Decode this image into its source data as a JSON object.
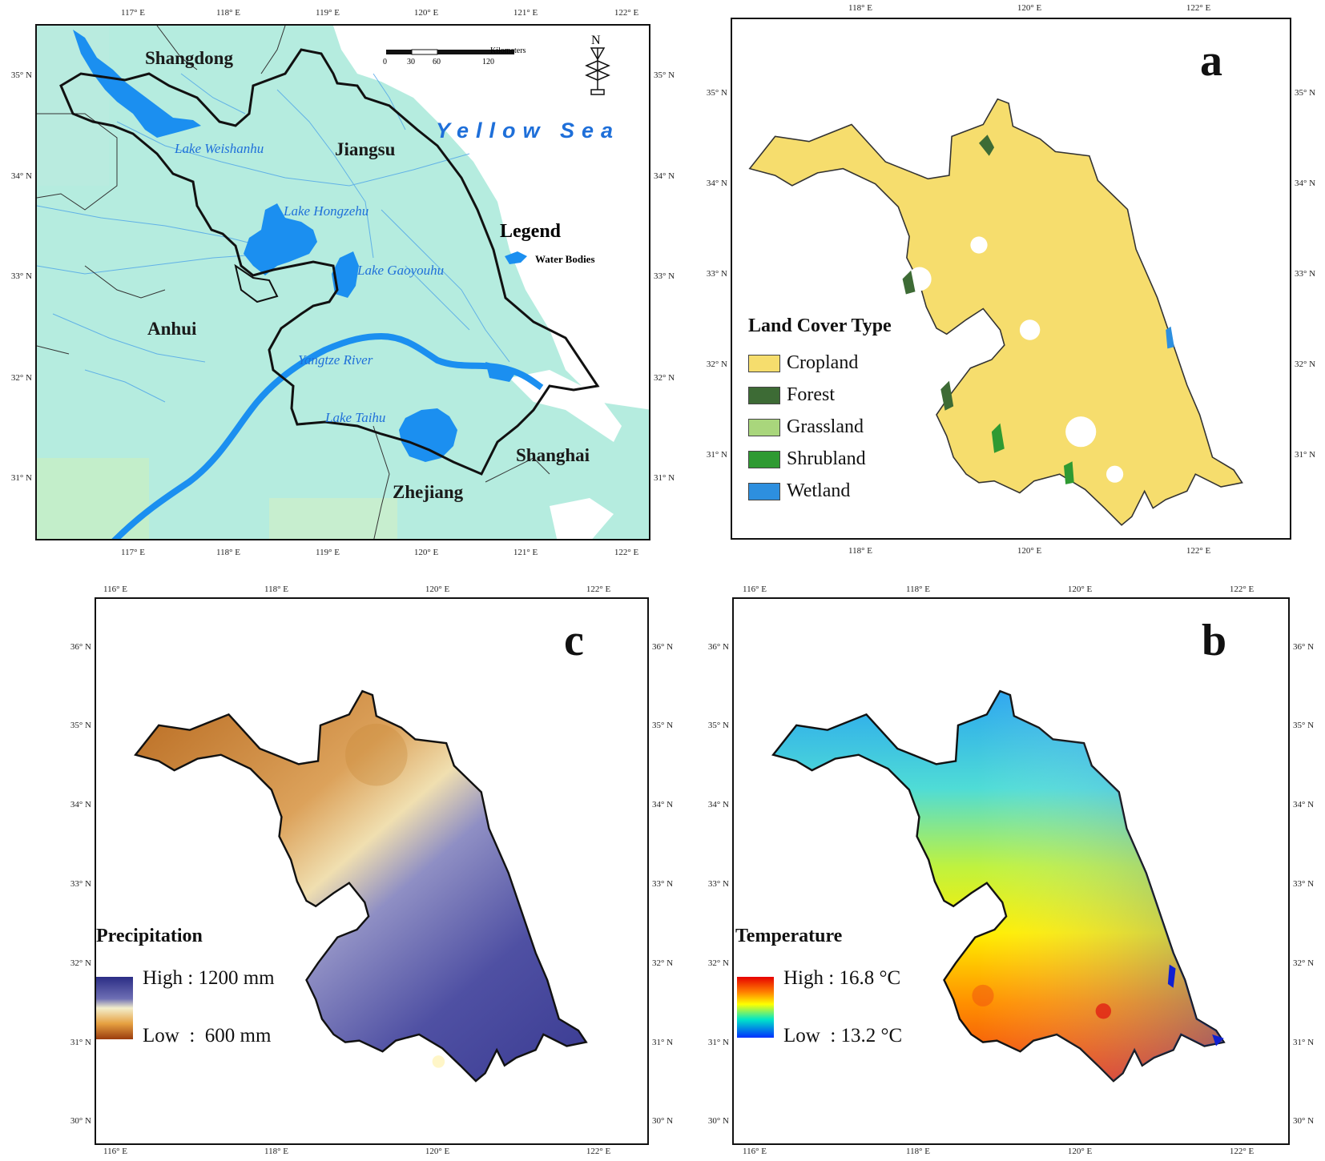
{
  "panels": {
    "overview": {
      "lon_labels": [
        "117° E",
        "118° E",
        "119° E",
        "120° E",
        "121° E",
        "122° E"
      ],
      "lat_labels": [
        "35° N",
        "34° N",
        "33° N",
        "32° N",
        "31° N"
      ],
      "regions": {
        "shangdong": "Shangdong",
        "jiangsu": "Jiangsu",
        "anhui": "Anhui",
        "shanghai": "Shanghai",
        "zhejiang": "Zhejiang"
      },
      "water_labels": {
        "weishanhu": "Lake Weishanhu",
        "hongzehu": "Lake Hongzehu",
        "gaoyouhu": "Lake Gaoyouhu",
        "yangtze": "Yangtze River",
        "taihu": "Lake Taihu"
      },
      "sea_label": "Yellow Sea",
      "legend_title": "Legend",
      "legend_item": "Water Bodies",
      "north_label": "N",
      "scalebar": {
        "unit": "Kilometers",
        "ticks": [
          "0",
          "30",
          "60",
          "120"
        ]
      },
      "colors": {
        "land": "#b5ecdf",
        "water": "#1b8ff0",
        "boundary": "#111111"
      }
    },
    "a": {
      "letter": "a",
      "lon_labels": [
        "118° E",
        "120° E",
        "122° E"
      ],
      "lat_labels": [
        "35° N",
        "34° N",
        "33° N",
        "32° N",
        "31° N"
      ],
      "legend_title": "Land Cover Type",
      "legend": [
        {
          "label": "Cropland",
          "color": "#f6dd6d"
        },
        {
          "label": "Forest",
          "color": "#3d6b35"
        },
        {
          "label": "Grassland",
          "color": "#a9d67c"
        },
        {
          "label": "Shrubland",
          "color": "#2f9a32"
        },
        {
          "label": "Wetland",
          "color": "#2d8fdf"
        }
      ]
    },
    "c": {
      "letter": "c",
      "lon_labels": [
        "116° E",
        "118° E",
        "120° E",
        "122° E"
      ],
      "lat_labels": [
        "36° N",
        "35° N",
        "34° N",
        "33° N",
        "32° N",
        "31° N",
        "30° N"
      ],
      "legend_title": "Precipitation",
      "high_label": "High : 1200 mm",
      "low_label": "Low  :  600 mm",
      "ramp": [
        "#2b2d85",
        "#6e6fb4",
        "#f3eecb",
        "#e6a040",
        "#9a3c0e"
      ]
    },
    "b": {
      "letter": "b",
      "lon_labels": [
        "116° E",
        "118° E",
        "120° E",
        "122° E"
      ],
      "lat_labels": [
        "36° N",
        "35° N",
        "34° N",
        "33° N",
        "32° N",
        "31° N",
        "30° N"
      ],
      "legend_title": "Temperature",
      "high_label": "High : 16.8 °C",
      "low_label": "Low  : 13.2 °C",
      "ramp": [
        "#e60000",
        "#ff8000",
        "#ffff00",
        "#00e6c8",
        "#0030ff"
      ]
    }
  }
}
